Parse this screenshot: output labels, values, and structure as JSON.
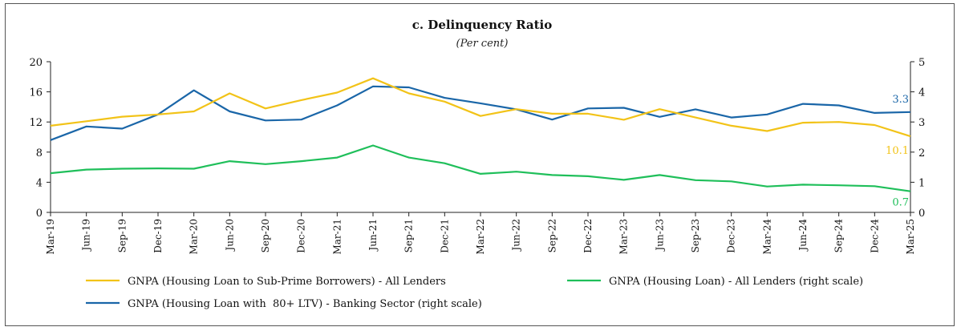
{
  "chart_data": {
    "type": "line",
    "title": "c. Delinquency Ratio",
    "subtitle": "(Per cent)",
    "categories": [
      "Mar-19",
      "Jun-19",
      "Sep-19",
      "Dec-19",
      "Mar-20",
      "Jun-20",
      "Sep-20",
      "Dec-20",
      "Mar-21",
      "Jun-21",
      "Sep-21",
      "Dec-21",
      "Mar-22",
      "Jun-22",
      "Sep-22",
      "Dec-22",
      "Mar-23",
      "Jun-23",
      "Sep-23",
      "Dec-23",
      "Mar-24",
      "Jun-24",
      "Sep-24",
      "Dec-24",
      "Mar-25"
    ],
    "y_left": {
      "min": 0,
      "max": 20,
      "ticks": [
        "0",
        "4",
        "8",
        "12",
        "16",
        "20"
      ]
    },
    "y_right": {
      "min": 0,
      "max": 5,
      "ticks": [
        "0",
        "1",
        "2",
        "3",
        "4",
        "5"
      ]
    },
    "grid": false,
    "legend_position": "bottom",
    "series": [
      {
        "name": "GNPA (Housing Loan to Sub-Prime Borrowers) - All Lenders",
        "axis": "left",
        "color": "#f2c318",
        "values": [
          11.5,
          12.1,
          12.7,
          13.0,
          13.4,
          15.8,
          13.8,
          14.9,
          15.9,
          17.8,
          15.8,
          14.7,
          12.8,
          13.7,
          13.1,
          13.1,
          12.3,
          13.7,
          12.6,
          11.5,
          10.8,
          11.9,
          12.0,
          11.6,
          10.1
        ],
        "end_label": "10.1"
      },
      {
        "name": "GNPA (Housing Loan) - All Lenders (right scale)",
        "axis": "right",
        "color": "#1fbf5a",
        "values": [
          1.3,
          1.42,
          1.45,
          1.46,
          1.45,
          1.7,
          1.6,
          1.7,
          1.82,
          2.22,
          1.82,
          1.63,
          1.28,
          1.35,
          1.24,
          1.2,
          1.08,
          1.24,
          1.07,
          1.03,
          0.86,
          0.92,
          0.9,
          0.87,
          0.7
        ],
        "end_label": "0.7"
      },
      {
        "name": "GNPA (Housing Loan with  80+ LTV) - Banking Sector (right scale)",
        "axis": "right",
        "color": "#1a66a8",
        "values": [
          2.4,
          2.85,
          2.78,
          3.25,
          4.05,
          3.35,
          3.05,
          3.08,
          3.55,
          4.18,
          4.15,
          3.8,
          3.62,
          3.42,
          3.08,
          3.45,
          3.47,
          3.17,
          3.42,
          3.15,
          3.25,
          3.6,
          3.55,
          3.3,
          3.33
        ],
        "end_label": "3.3"
      }
    ]
  }
}
